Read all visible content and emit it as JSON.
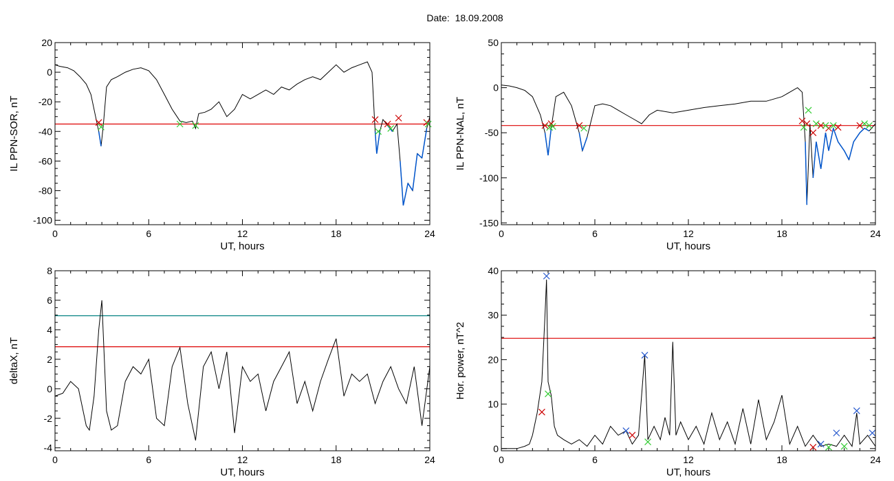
{
  "header": {
    "date_label": "Date:",
    "date_value": "18.09.2008"
  },
  "colors": {
    "data": "#000000",
    "storm": "#0055cc",
    "threshold": "#dd0000",
    "threshold2": "#008080",
    "marker_red": "#cc0000",
    "marker_green": "#33cc33",
    "marker_blue": "#2255cc"
  },
  "chart_data": [
    {
      "type": "line",
      "ylabel": "IL PPN-SOR, nT",
      "xlabel": "UT, hours",
      "xlim": [
        0,
        24
      ],
      "ylim": [
        -103,
        20
      ],
      "x_ticks": [
        0,
        6,
        12,
        18,
        24
      ],
      "y_ticks": [
        20,
        0,
        -20,
        -40,
        -60,
        -80,
        -100
      ],
      "series": [
        {
          "x": [
            0,
            0.3,
            0.8,
            1.2,
            1.6,
            2.0,
            2.3,
            2.6,
            2.8,
            2.95,
            3.1,
            3.3,
            3.6,
            4.0,
            4.5,
            5.0,
            5.5,
            6.0,
            6.5,
            7.0,
            7.5,
            8.0,
            8.4,
            8.8,
            9.0,
            9.2,
            9.6,
            10.0,
            10.5,
            11.0,
            11.5,
            12.0,
            12.5,
            13.0,
            13.5,
            14.0,
            14.5,
            15.0,
            15.5,
            16.0,
            16.5,
            17.0,
            17.5,
            18.0,
            18.5,
            19.0,
            19.5,
            20.0,
            20.3,
            20.5,
            20.6,
            20.8,
            21.0,
            21.3,
            21.6,
            21.9,
            22.1,
            22.3,
            22.6,
            22.9,
            23.2,
            23.5,
            23.8,
            24.0
          ],
          "y": [
            5,
            4,
            3,
            1,
            -3,
            -8,
            -15,
            -30,
            -40,
            -50,
            -35,
            -10,
            -5,
            -3,
            0,
            2,
            3,
            1,
            -5,
            -15,
            -25,
            -33,
            -34,
            -33,
            -38,
            -28,
            -27,
            -25,
            -20,
            -30,
            -25,
            -15,
            -18,
            -15,
            -12,
            -15,
            -10,
            -12,
            -8,
            -5,
            -3,
            -5,
            0,
            5,
            0,
            3,
            5,
            7,
            0,
            -40,
            -55,
            -40,
            -32,
            -36,
            -40,
            -35,
            -60,
            -90,
            -75,
            -80,
            -55,
            -58,
            -38,
            -30
          ]
        }
      ],
      "thresholds": [
        -35
      ],
      "markers_red": [
        [
          2.8,
          -34
        ],
        [
          20.5,
          -32
        ],
        [
          21.3,
          -35
        ],
        [
          22.0,
          -31
        ],
        [
          23.8,
          -34
        ]
      ],
      "markers_green": [
        [
          2.95,
          -37
        ],
        [
          8.0,
          -35
        ],
        [
          9.0,
          -36
        ],
        [
          20.7,
          -40
        ],
        [
          21.5,
          -38
        ],
        [
          23.9,
          -35
        ]
      ]
    },
    {
      "type": "line",
      "ylabel": "IL PPN-NAL, nT",
      "xlabel": "UT, hours",
      "xlim": [
        0,
        24
      ],
      "ylim": [
        -152,
        50
      ],
      "x_ticks": [
        0,
        6,
        12,
        18,
        24
      ],
      "y_ticks": [
        50,
        0,
        -50,
        -100,
        -150
      ],
      "series": [
        {
          "x": [
            0,
            0.5,
            1.0,
            1.5,
            2.0,
            2.5,
            2.8,
            3.0,
            3.2,
            3.5,
            4.0,
            4.5,
            5.0,
            5.2,
            5.5,
            6.0,
            6.5,
            7.0,
            7.5,
            8.0,
            8.5,
            9.0,
            9.5,
            10.0,
            11.0,
            12.0,
            13.0,
            14.0,
            15.0,
            16.0,
            17.0,
            18.0,
            18.5,
            19.0,
            19.3,
            19.5,
            19.6,
            19.8,
            20.0,
            20.2,
            20.5,
            20.8,
            21.0,
            21.3,
            21.6,
            22.0,
            22.3,
            22.6,
            23.0,
            23.3,
            23.6,
            24.0
          ],
          "y": [
            3,
            2,
            0,
            -3,
            -10,
            -30,
            -50,
            -75,
            -45,
            -10,
            -5,
            -20,
            -50,
            -70,
            -55,
            -20,
            -18,
            -20,
            -25,
            -30,
            -35,
            -40,
            -30,
            -25,
            -28,
            -25,
            -22,
            -20,
            -18,
            -15,
            -15,
            -10,
            -5,
            0,
            -5,
            -60,
            -130,
            -40,
            -100,
            -60,
            -90,
            -50,
            -70,
            -45,
            -60,
            -70,
            -80,
            -60,
            -50,
            -45,
            -48,
            -40
          ]
        }
      ],
      "thresholds": [
        -42
      ],
      "markers_red": [
        [
          2.8,
          -42
        ],
        [
          3.2,
          -40
        ],
        [
          5.0,
          -42
        ],
        [
          19.3,
          -37
        ],
        [
          19.6,
          -40
        ],
        [
          20.0,
          -50
        ],
        [
          20.5,
          -42
        ],
        [
          21.0,
          -45
        ],
        [
          21.6,
          -44
        ],
        [
          23.0,
          -42
        ]
      ],
      "markers_green": [
        [
          3.1,
          -44
        ],
        [
          3.3,
          -43
        ],
        [
          5.3,
          -45
        ],
        [
          19.4,
          -44
        ],
        [
          19.7,
          -25
        ],
        [
          20.2,
          -40
        ],
        [
          20.8,
          -42
        ],
        [
          21.3,
          -42
        ],
        [
          23.3,
          -40
        ],
        [
          23.6,
          -42
        ]
      ]
    },
    {
      "type": "line",
      "ylabel": "deltaX, nT",
      "xlabel": "UT, hours",
      "xlim": [
        0,
        24
      ],
      "ylim": [
        -4.2,
        8
      ],
      "x_ticks": [
        0,
        6,
        12,
        18,
        24
      ],
      "y_ticks": [
        8,
        6,
        4,
        2,
        0,
        -2,
        -4
      ],
      "series": [
        {
          "x": [
            0,
            0.5,
            1.0,
            1.5,
            2.0,
            2.2,
            2.5,
            2.8,
            3.0,
            3.3,
            3.6,
            4.0,
            4.5,
            5.0,
            5.5,
            6.0,
            6.5,
            7.0,
            7.5,
            8.0,
            8.5,
            9.0,
            9.5,
            10.0,
            10.5,
            11.0,
            11.5,
            12.0,
            12.5,
            13.0,
            13.5,
            14.0,
            14.5,
            15.0,
            15.5,
            16.0,
            16.5,
            17.0,
            17.5,
            18.0,
            18.5,
            19.0,
            19.5,
            20.0,
            20.5,
            21.0,
            21.5,
            22.0,
            22.5,
            23.0,
            23.5,
            24.0
          ],
          "y": [
            -0.5,
            -0.3,
            0.5,
            0,
            -2.5,
            -2.8,
            -0.5,
            4.0,
            6.0,
            -1.5,
            -2.8,
            -2.5,
            0.5,
            1.5,
            1.0,
            2.0,
            -2.0,
            -2.5,
            1.5,
            2.8,
            -1.0,
            -3.5,
            1.5,
            2.5,
            0,
            2.5,
            -3.0,
            1.5,
            0.5,
            1.0,
            -1.5,
            0.5,
            1.5,
            2.5,
            -1.0,
            0.5,
            -1.5,
            0.5,
            2.0,
            3.4,
            -0.5,
            1.0,
            0.5,
            1.0,
            -1.0,
            0.5,
            1.5,
            0,
            -1.0,
            1.5,
            -2.5,
            1.5
          ]
        }
      ],
      "thresholds": [
        4.95,
        2.85
      ]
    },
    {
      "type": "line",
      "ylabel": "Hor. power, nT^2",
      "xlabel": "UT, hours",
      "xlim": [
        0,
        24
      ],
      "ylim": [
        -0.5,
        40
      ],
      "x_ticks": [
        0,
        6,
        12,
        18,
        24
      ],
      "y_ticks": [
        40,
        30,
        20,
        10,
        0
      ],
      "series": [
        {
          "x": [
            0,
            1.0,
            1.5,
            1.8,
            2.0,
            2.3,
            2.6,
            2.8,
            2.9,
            3.0,
            3.2,
            3.4,
            3.6,
            4.0,
            4.5,
            5.0,
            5.5,
            6.0,
            6.5,
            7.0,
            7.5,
            8.0,
            8.4,
            8.8,
            9.2,
            9.4,
            9.8,
            10.2,
            10.5,
            10.8,
            11.0,
            11.2,
            11.5,
            12.0,
            12.5,
            13.0,
            13.5,
            14.0,
            14.5,
            15.0,
            15.5,
            16.0,
            16.5,
            17.0,
            17.5,
            18.0,
            18.5,
            19.0,
            19.5,
            20.0,
            20.5,
            21.0,
            21.5,
            22.0,
            22.5,
            22.8,
            23.0,
            23.5,
            24.0
          ],
          "y": [
            0,
            0,
            0.5,
            1,
            3,
            8,
            15,
            30,
            38,
            15,
            12,
            5,
            3,
            2,
            1,
            2,
            0.5,
            3,
            1,
            5,
            3,
            4,
            1,
            3,
            21,
            2,
            5,
            2,
            7,
            3,
            24,
            3,
            6,
            2,
            5,
            1,
            8,
            2,
            6,
            1,
            9,
            1,
            11,
            2,
            6,
            12,
            1,
            5,
            0.5,
            3,
            0.5,
            1,
            0.5,
            3,
            0.5,
            8,
            1,
            3,
            0.5
          ]
        }
      ],
      "thresholds": [
        24.8
      ],
      "markers_blue": [
        [
          2.9,
          38.8
        ],
        [
          9.2,
          21
        ],
        [
          8.0,
          4
        ],
        [
          20.5,
          1
        ],
        [
          21.5,
          3.5
        ],
        [
          22.8,
          8.5
        ],
        [
          23.8,
          3.5
        ]
      ],
      "markers_green": [
        [
          3.0,
          12.3
        ],
        [
          9.4,
          1.5
        ],
        [
          21.0,
          0.3
        ],
        [
          22.0,
          0.5
        ]
      ],
      "markers_red": [
        [
          2.6,
          8.2
        ],
        [
          8.4,
          3
        ],
        [
          20.0,
          0.3
        ]
      ]
    }
  ]
}
